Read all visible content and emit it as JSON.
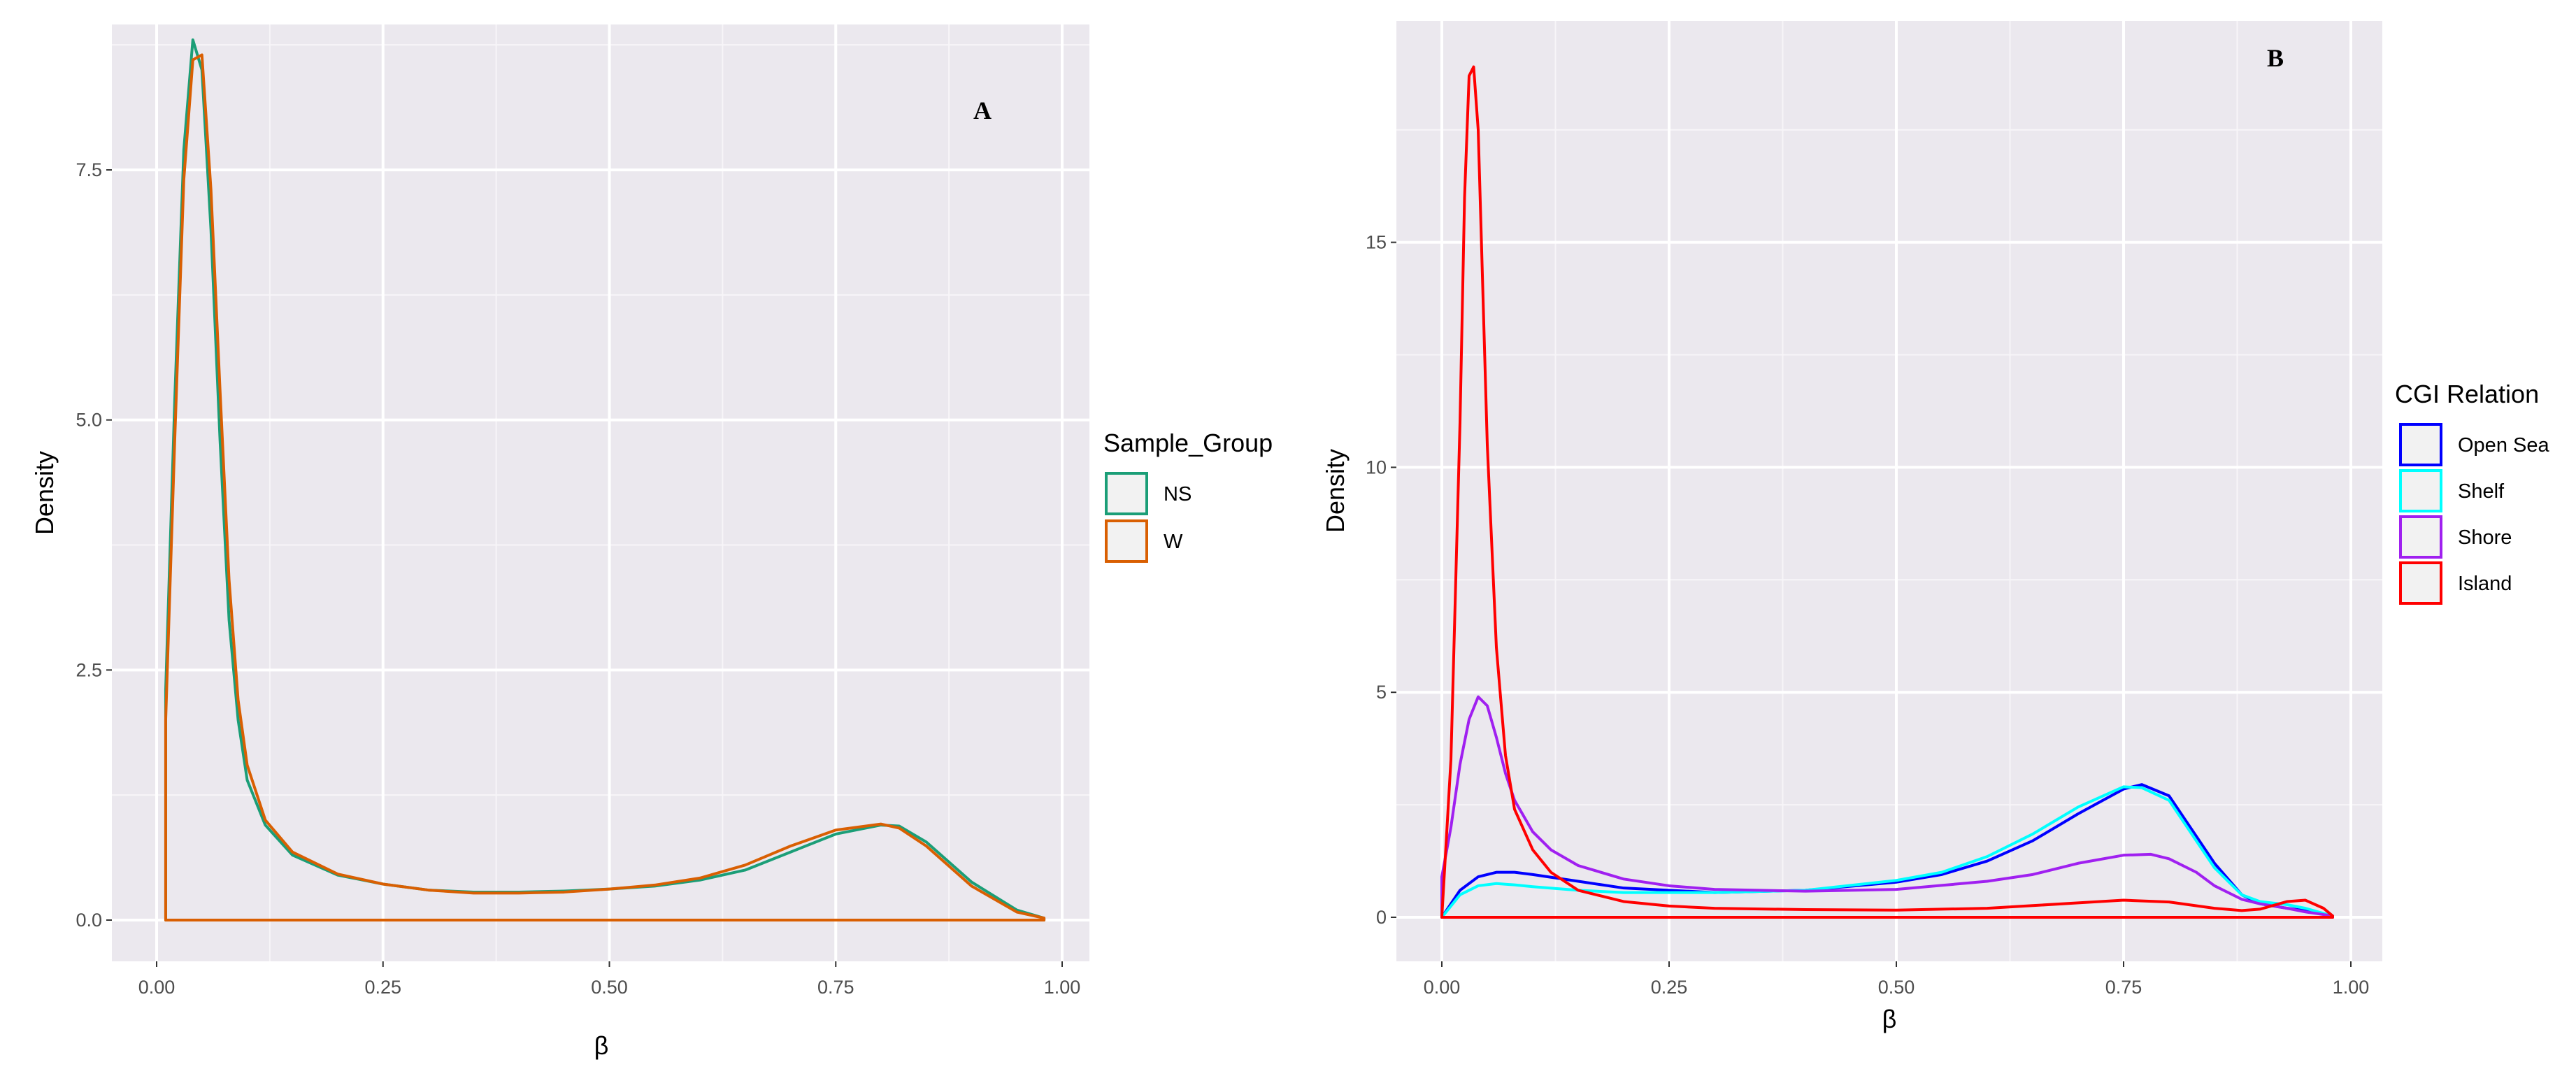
{
  "chart_data": [
    {
      "type": "line",
      "panel_label": "A",
      "xlabel": "β",
      "ylabel": "Density",
      "xlim": [
        0,
        1
      ],
      "ylim": [
        0,
        8.8
      ],
      "x_ticks": [
        0,
        0.25,
        0.5,
        0.75,
        1.0
      ],
      "x_tick_labels": [
        "0.00",
        "0.25",
        "0.50",
        "0.75",
        "1.00"
      ],
      "y_ticks": [
        0,
        2.5,
        5.0,
        7.5
      ],
      "y_tick_labels": [
        "0.0",
        "2.5",
        "5.0",
        "7.5"
      ],
      "grid": true,
      "legend": {
        "title": "Sample_Group",
        "position": "right"
      },
      "series": [
        {
          "name": "NS",
          "color": "#1b9e77",
          "x": [
            0.01,
            0.02,
            0.03,
            0.04,
            0.05,
            0.06,
            0.07,
            0.08,
            0.09,
            0.1,
            0.12,
            0.15,
            0.2,
            0.25,
            0.3,
            0.35,
            0.4,
            0.45,
            0.5,
            0.55,
            0.6,
            0.65,
            0.7,
            0.75,
            0.8,
            0.82,
            0.85,
            0.9,
            0.95,
            0.98
          ],
          "y": [
            2.3,
            5.2,
            7.7,
            8.8,
            8.5,
            6.9,
            4.8,
            3.0,
            2.0,
            1.4,
            0.95,
            0.65,
            0.45,
            0.36,
            0.3,
            0.28,
            0.28,
            0.29,
            0.31,
            0.34,
            0.4,
            0.5,
            0.68,
            0.86,
            0.95,
            0.94,
            0.78,
            0.38,
            0.1,
            0.02
          ]
        },
        {
          "name": "W",
          "color": "#d95f02",
          "x": [
            0.01,
            0.02,
            0.03,
            0.04,
            0.05,
            0.06,
            0.07,
            0.08,
            0.09,
            0.1,
            0.12,
            0.15,
            0.2,
            0.25,
            0.3,
            0.35,
            0.4,
            0.45,
            0.5,
            0.55,
            0.6,
            0.65,
            0.7,
            0.75,
            0.8,
            0.82,
            0.85,
            0.9,
            0.95,
            0.98
          ],
          "y": [
            2.0,
            4.8,
            7.4,
            8.6,
            8.65,
            7.3,
            5.3,
            3.4,
            2.2,
            1.55,
            1.0,
            0.68,
            0.46,
            0.36,
            0.3,
            0.27,
            0.27,
            0.28,
            0.31,
            0.35,
            0.42,
            0.55,
            0.74,
            0.9,
            0.96,
            0.92,
            0.74,
            0.34,
            0.08,
            0.02
          ]
        }
      ]
    },
    {
      "type": "line",
      "panel_label": "B",
      "xlabel": "β",
      "ylabel": "Density",
      "xlim": [
        0,
        1
      ],
      "ylim": [
        0,
        19.5
      ],
      "x_ticks": [
        0,
        0.25,
        0.5,
        0.75,
        1.0
      ],
      "x_tick_labels": [
        "0.00",
        "0.25",
        "0.50",
        "0.75",
        "1.00"
      ],
      "y_ticks": [
        0,
        5,
        10,
        15
      ],
      "y_tick_labels": [
        "0",
        "5",
        "10",
        "15"
      ],
      "grid": true,
      "legend": {
        "title": "CGI Relation",
        "position": "right"
      },
      "series": [
        {
          "name": "Open Sea",
          "color": "#0000ff",
          "x": [
            0.0,
            0.02,
            0.04,
            0.06,
            0.08,
            0.1,
            0.15,
            0.2,
            0.3,
            0.4,
            0.5,
            0.55,
            0.6,
            0.65,
            0.7,
            0.75,
            0.77,
            0.8,
            0.83,
            0.85,
            0.88,
            0.9,
            0.93,
            0.95,
            0.98
          ],
          "y": [
            0.0,
            0.6,
            0.9,
            1.0,
            1.0,
            0.95,
            0.8,
            0.65,
            0.55,
            0.6,
            0.78,
            0.95,
            1.25,
            1.7,
            2.3,
            2.85,
            2.95,
            2.7,
            1.8,
            1.2,
            0.5,
            0.3,
            0.2,
            0.15,
            0.03
          ]
        },
        {
          "name": "Shelf",
          "color": "#00ffff",
          "x": [
            0.0,
            0.02,
            0.04,
            0.06,
            0.08,
            0.1,
            0.15,
            0.2,
            0.3,
            0.4,
            0.5,
            0.55,
            0.6,
            0.65,
            0.7,
            0.75,
            0.77,
            0.8,
            0.83,
            0.85,
            0.88,
            0.9,
            0.93,
            0.95,
            0.98
          ],
          "y": [
            0.0,
            0.5,
            0.7,
            0.75,
            0.72,
            0.68,
            0.6,
            0.55,
            0.55,
            0.6,
            0.82,
            1.0,
            1.35,
            1.85,
            2.45,
            2.9,
            2.88,
            2.6,
            1.7,
            1.1,
            0.5,
            0.35,
            0.28,
            0.2,
            0.03
          ]
        },
        {
          "name": "Shore",
          "color": "#a020f0",
          "x": [
            0.0,
            0.01,
            0.02,
            0.03,
            0.04,
            0.05,
            0.06,
            0.07,
            0.08,
            0.1,
            0.12,
            0.15,
            0.2,
            0.25,
            0.3,
            0.4,
            0.5,
            0.6,
            0.65,
            0.7,
            0.75,
            0.78,
            0.8,
            0.83,
            0.85,
            0.88,
            0.9,
            0.93,
            0.95,
            0.98
          ],
          "y": [
            0.9,
            2.0,
            3.4,
            4.4,
            4.9,
            4.7,
            4.0,
            3.2,
            2.6,
            1.9,
            1.5,
            1.15,
            0.85,
            0.7,
            0.62,
            0.58,
            0.62,
            0.8,
            0.95,
            1.2,
            1.38,
            1.4,
            1.3,
            1.0,
            0.7,
            0.4,
            0.3,
            0.2,
            0.12,
            0.03
          ]
        },
        {
          "name": "Island",
          "color": "#ff0000",
          "x": [
            0.0,
            0.01,
            0.02,
            0.025,
            0.03,
            0.035,
            0.04,
            0.045,
            0.05,
            0.06,
            0.07,
            0.08,
            0.1,
            0.12,
            0.15,
            0.2,
            0.25,
            0.3,
            0.4,
            0.5,
            0.6,
            0.65,
            0.7,
            0.75,
            0.8,
            0.85,
            0.88,
            0.9,
            0.93,
            0.95,
            0.97,
            0.98
          ],
          "y": [
            0.0,
            3.5,
            11.0,
            16.0,
            18.7,
            18.9,
            17.5,
            14.0,
            10.5,
            6.0,
            3.6,
            2.4,
            1.5,
            1.0,
            0.6,
            0.35,
            0.25,
            0.2,
            0.17,
            0.16,
            0.2,
            0.26,
            0.32,
            0.38,
            0.34,
            0.2,
            0.15,
            0.18,
            0.35,
            0.38,
            0.2,
            0.03
          ]
        }
      ]
    }
  ]
}
